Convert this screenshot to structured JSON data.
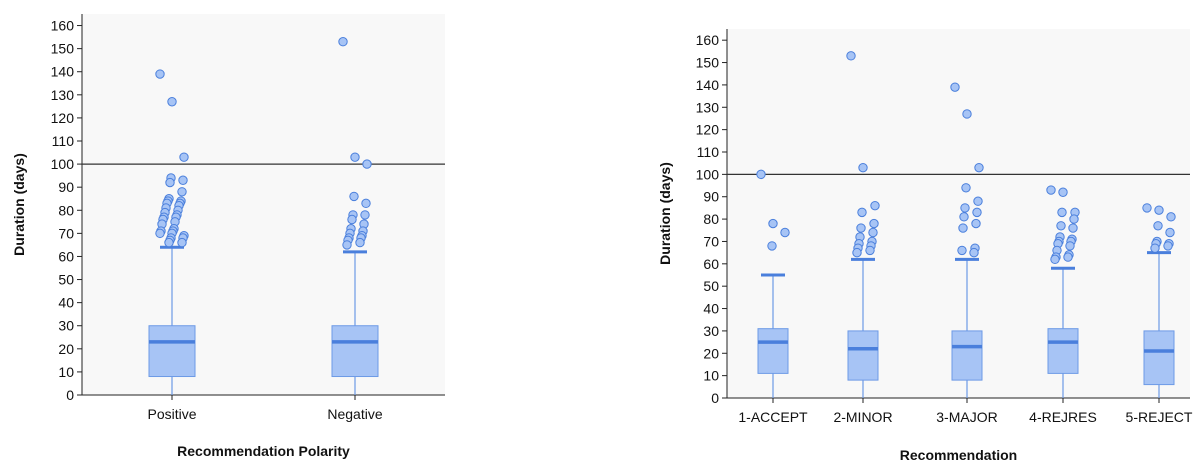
{
  "colors": {
    "box_fill": "#a7c4f5",
    "box_stroke": "#6d9ae6",
    "median": "#4a7fdc",
    "outlier_fill": "#a7c4f5",
    "outlier_stroke": "#4a7fdc",
    "plot_bg": "#f8f8f8",
    "reference_line": "#333333"
  },
  "chart_data": [
    {
      "type": "box",
      "xlabel": "Recommendation Polarity",
      "ylabel": "Duration (days)",
      "ylim": [
        0,
        165
      ],
      "yticks": [
        0,
        10,
        20,
        30,
        40,
        50,
        60,
        70,
        80,
        90,
        100,
        110,
        120,
        130,
        140,
        150,
        160
      ],
      "reference_line": 100,
      "grid": false,
      "categories": [
        "Positive",
        "Negative"
      ],
      "boxes": [
        {
          "category": "Positive",
          "whisker_low": 0,
          "q1": 8,
          "median": 23,
          "q3": 30,
          "whisker_high": 64,
          "outliers": [
            139,
            127,
            103,
            94,
            93,
            92,
            88,
            85,
            84,
            84,
            83,
            83,
            82,
            81,
            80,
            79,
            78,
            77,
            77,
            76,
            75,
            74,
            72,
            71,
            71,
            70,
            70,
            69,
            68,
            68,
            67,
            66,
            66
          ]
        },
        {
          "category": "Negative",
          "whisker_low": 0,
          "q1": 8,
          "median": 23,
          "q3": 30,
          "whisker_high": 62,
          "outliers": [
            153,
            103,
            100,
            86,
            83,
            78,
            78,
            76,
            74,
            72,
            71,
            70,
            69,
            68,
            68,
            67,
            66,
            65
          ]
        }
      ]
    },
    {
      "type": "box",
      "xlabel": "Recommendation",
      "ylabel": "Duration (days)",
      "ylim": [
        0,
        165
      ],
      "yticks": [
        0,
        10,
        20,
        30,
        40,
        50,
        60,
        70,
        80,
        90,
        100,
        110,
        120,
        130,
        140,
        150,
        160
      ],
      "reference_line": 100,
      "grid": false,
      "categories": [
        "1-ACCEPT",
        "2-MINOR",
        "3-MAJOR",
        "4-REJRES",
        "5-REJECT"
      ],
      "boxes": [
        {
          "category": "1-ACCEPT",
          "whisker_low": 0,
          "q1": 11,
          "median": 25,
          "q3": 31,
          "whisker_high": 55,
          "outliers": [
            100,
            78,
            74,
            68
          ]
        },
        {
          "category": "2-MINOR",
          "whisker_low": 0,
          "q1": 8,
          "median": 22,
          "q3": 30,
          "whisker_high": 62,
          "outliers": [
            153,
            103,
            86,
            83,
            78,
            76,
            74,
            72,
            70,
            69,
            68,
            67,
            66,
            65
          ]
        },
        {
          "category": "3-MAJOR",
          "whisker_low": 0,
          "q1": 8,
          "median": 23,
          "q3": 30,
          "whisker_high": 62,
          "outliers": [
            139,
            127,
            103,
            94,
            88,
            85,
            83,
            81,
            78,
            76,
            67,
            66,
            65
          ]
        },
        {
          "category": "4-REJRES",
          "whisker_low": 0,
          "q1": 11,
          "median": 25,
          "q3": 31,
          "whisker_high": 58,
          "outliers": [
            93,
            92,
            83,
            83,
            80,
            77,
            76,
            72,
            71,
            70,
            70,
            69,
            68,
            66,
            64,
            63,
            63,
            62
          ]
        },
        {
          "category": "5-REJECT",
          "whisker_low": 0,
          "q1": 6,
          "median": 21,
          "q3": 30,
          "whisker_high": 65,
          "outliers": [
            85,
            84,
            81,
            77,
            74,
            70,
            69,
            69,
            68,
            67
          ]
        }
      ]
    }
  ]
}
